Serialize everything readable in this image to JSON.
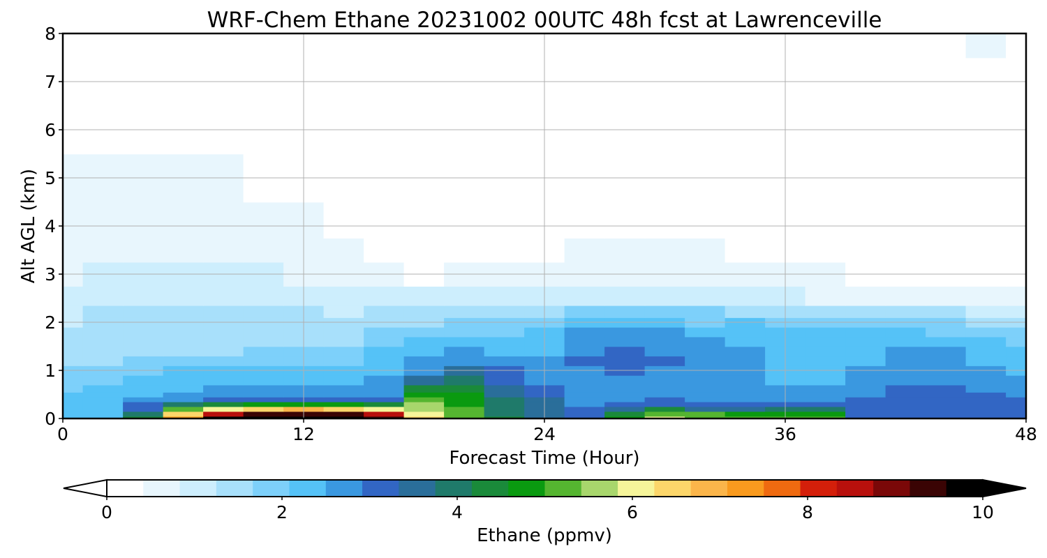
{
  "chart_data": {
    "type": "heatmap",
    "title": "WRF-Chem Ethane  20231002 00UTC 48h fcst at Lawrenceville",
    "xlabel": "Forecast Time (Hour)",
    "ylabel": "Alt AGL (km)",
    "xlim": [
      0,
      48
    ],
    "ylim": [
      0,
      8
    ],
    "xticks": [
      0,
      12,
      24,
      36,
      48
    ],
    "yticks": [
      0,
      1,
      2,
      3,
      4,
      5,
      6,
      7,
      8
    ],
    "grid": true,
    "colorbar": {
      "label": "Ethane  (ppmv)",
      "range": [
        0,
        10
      ],
      "ticks": [
        0,
        2,
        4,
        6,
        8,
        10
      ],
      "extend": "both",
      "colors": [
        "#ffffff",
        "#e8f6fd",
        "#cdeefd",
        "#a8e0fb",
        "#7dd0fa",
        "#55c2f7",
        "#3a98e0",
        "#3266c4",
        "#2a6e9a",
        "#1f7a6a",
        "#1a8a3a",
        "#0a9a10",
        "#55b530",
        "#a8d66c",
        "#f6f59a",
        "#fcd66a",
        "#fbb54a",
        "#f99a1e",
        "#ef6a10",
        "#d41f0a",
        "#b8100c",
        "#7a0808",
        "#3a0404",
        "#000000"
      ]
    },
    "time_hours": [
      0,
      2,
      4,
      6,
      8,
      10,
      12,
      14,
      16,
      18,
      20,
      22,
      24,
      26,
      28,
      30,
      32,
      34,
      36,
      38,
      40,
      42,
      44,
      46,
      48
    ],
    "alt_km": [
      0,
      0.1,
      0.2,
      0.3,
      0.4,
      0.5,
      0.6,
      0.8,
      1.0,
      1.2,
      1.4,
      1.6,
      1.8,
      2.0,
      2.2,
      2.5,
      3.0,
      3.5,
      4.0,
      5.0,
      6.0,
      7.0,
      8.0
    ],
    "values_ppmv": [
      [
        2.2,
        2.4,
        4.5,
        7.2,
        9.6,
        9.9,
        9.9,
        9.8,
        9.5,
        6.5,
        5.2,
        4.2,
        3.7,
        3.2,
        4.6,
        6.2,
        5.4,
        5.3,
        5.1,
        5.2,
        3.2,
        3.1,
        3.1,
        3.2,
        3.2
      ],
      [
        2.2,
        2.4,
        4.0,
        6.6,
        8.7,
        9.3,
        9.3,
        9.2,
        8.6,
        6.0,
        5.1,
        4.0,
        3.6,
        3.1,
        4.2,
        5.4,
        5.0,
        4.9,
        4.9,
        4.9,
        3.1,
        3.1,
        3.1,
        3.2,
        3.2
      ],
      [
        2.2,
        2.3,
        3.3,
        5.2,
        6.2,
        6.6,
        6.7,
        6.6,
        6.0,
        5.7,
        5.0,
        4.0,
        3.6,
        3.0,
        3.4,
        4.2,
        3.6,
        3.6,
        4.0,
        4.0,
        3.1,
        3.1,
        3.1,
        3.2,
        3.2
      ],
      [
        2.2,
        2.3,
        3.0,
        4.0,
        4.4,
        4.6,
        4.7,
        4.6,
        4.3,
        5.5,
        4.9,
        3.9,
        3.5,
        2.9,
        3.1,
        3.3,
        3.2,
        3.0,
        3.0,
        3.0,
        3.1,
        3.1,
        3.1,
        3.2,
        3.1
      ],
      [
        2.1,
        2.2,
        2.6,
        2.9,
        3.0,
        3.1,
        3.2,
        3.1,
        3.0,
        5.1,
        4.8,
        3.8,
        3.4,
        2.9,
        2.9,
        3.0,
        2.9,
        2.8,
        2.8,
        2.8,
        3.0,
        3.1,
        3.1,
        3.1,
        3.0
      ],
      [
        2.1,
        2.2,
        2.4,
        2.6,
        2.7,
        2.7,
        2.8,
        2.7,
        2.7,
        4.7,
        4.6,
        3.7,
        3.3,
        2.8,
        2.8,
        2.8,
        2.7,
        2.7,
        2.6,
        2.6,
        2.9,
        3.0,
        3.0,
        3.0,
        2.9
      ],
      [
        2.0,
        2.1,
        2.3,
        2.4,
        2.5,
        2.5,
        2.6,
        2.5,
        2.6,
        4.3,
        4.4,
        3.6,
        3.1,
        2.8,
        2.8,
        2.7,
        2.6,
        2.6,
        2.5,
        2.5,
        2.8,
        3.0,
        3.0,
        2.9,
        2.8
      ],
      [
        1.9,
        2.0,
        2.2,
        2.3,
        2.3,
        2.3,
        2.4,
        2.4,
        2.5,
        3.5,
        3.9,
        3.3,
        2.8,
        2.8,
        2.9,
        2.8,
        2.6,
        2.5,
        2.4,
        2.4,
        2.6,
        2.9,
        2.9,
        2.7,
        2.6
      ],
      [
        1.8,
        1.9,
        2.0,
        2.1,
        2.1,
        2.1,
        2.2,
        2.2,
        2.4,
        2.9,
        3.4,
        3.0,
        2.6,
        2.9,
        3.0,
        2.9,
        2.6,
        2.5,
        2.4,
        2.4,
        2.5,
        2.7,
        2.7,
        2.5,
        2.4
      ],
      [
        1.6,
        1.6,
        1.7,
        1.8,
        1.8,
        1.8,
        1.9,
        2.0,
        2.3,
        2.6,
        2.8,
        2.7,
        2.5,
        3.0,
        3.1,
        3.0,
        2.6,
        2.5,
        2.4,
        2.4,
        2.4,
        2.6,
        2.6,
        2.4,
        2.3
      ],
      [
        1.5,
        1.5,
        1.6,
        1.6,
        1.6,
        1.7,
        1.7,
        1.8,
        2.1,
        2.4,
        2.5,
        2.4,
        2.4,
        2.9,
        3.0,
        2.9,
        2.5,
        2.5,
        2.4,
        2.4,
        2.4,
        2.5,
        2.5,
        2.3,
        2.2
      ],
      [
        1.4,
        1.5,
        1.5,
        1.6,
        1.6,
        1.6,
        1.6,
        1.6,
        1.9,
        2.1,
        2.2,
        2.2,
        2.3,
        2.8,
        2.9,
        2.8,
        2.5,
        2.4,
        2.3,
        2.3,
        2.3,
        2.3,
        2.3,
        2.1,
        2.0
      ],
      [
        1.3,
        1.5,
        1.6,
        1.6,
        1.6,
        1.6,
        1.6,
        1.5,
        1.7,
        1.9,
        2.0,
        2.0,
        2.2,
        2.6,
        2.7,
        2.5,
        2.3,
        2.3,
        2.2,
        2.2,
        2.1,
        2.1,
        2.0,
        1.9,
        1.8
      ],
      [
        1.2,
        1.4,
        1.5,
        1.5,
        1.6,
        1.5,
        1.5,
        1.4,
        1.5,
        1.6,
        1.7,
        1.8,
        1.9,
        2.2,
        2.3,
        2.1,
        2.0,
        2.1,
        2.0,
        1.9,
        1.8,
        1.8,
        1.7,
        1.6,
        1.5
      ],
      [
        1.1,
        1.3,
        1.4,
        1.4,
        1.4,
        1.4,
        1.3,
        1.2,
        1.3,
        1.4,
        1.4,
        1.5,
        1.6,
        1.8,
        1.8,
        1.7,
        1.7,
        1.6,
        1.5,
        1.4,
        1.3,
        1.3,
        1.3,
        1.2,
        1.2
      ],
      [
        1.0,
        1.1,
        1.2,
        1.2,
        1.2,
        1.2,
        1.1,
        1.0,
        0.9,
        0.9,
        0.9,
        1.0,
        1.0,
        1.0,
        1.0,
        1.0,
        1.0,
        0.9,
        0.9,
        0.8,
        0.8,
        0.8,
        0.8,
        0.7,
        0.7
      ],
      [
        0.8,
        0.9,
        0.9,
        0.9,
        0.9,
        0.9,
        0.8,
        0.7,
        0.5,
        0.4,
        0.5,
        0.5,
        0.5,
        0.6,
        0.6,
        0.6,
        0.5,
        0.5,
        0.5,
        0.5,
        0.4,
        0.4,
        0.4,
        0.4,
        0.3
      ],
      [
        0.7,
        0.7,
        0.7,
        0.7,
        0.6,
        0.6,
        0.6,
        0.5,
        0.4,
        0.3,
        0.3,
        0.4,
        0.4,
        0.5,
        0.5,
        0.5,
        0.5,
        0.4,
        0.4,
        0.4,
        0.4,
        0.3,
        0.3,
        0.3,
        0.3
      ],
      [
        0.6,
        0.6,
        0.6,
        0.6,
        0.5,
        0.5,
        0.5,
        0.4,
        0.4,
        0.3,
        0.3,
        0.3,
        0.4,
        0.4,
        0.4,
        0.4,
        0.4,
        0.4,
        0.3,
        0.3,
        0.3,
        0.3,
        0.2,
        0.2,
        0.2
      ],
      [
        0.5,
        0.5,
        0.5,
        0.5,
        0.5,
        0.4,
        0.4,
        0.4,
        0.4,
        0.4,
        0.4,
        0.3,
        0.4,
        0.4,
        0.4,
        0.4,
        0.4,
        0.3,
        0.3,
        0.3,
        0.3,
        0.3,
        0.2,
        0.2,
        0.3
      ],
      [
        0.4,
        0.4,
        0.4,
        0.4,
        0.4,
        0.4,
        0.4,
        0.4,
        0.4,
        0.4,
        0.4,
        0.3,
        0.3,
        0.3,
        0.3,
        0.3,
        0.3,
        0.3,
        0.4,
        0.4,
        0.4,
        0.4,
        0.4,
        0.4,
        0.4
      ],
      [
        0.3,
        0.3,
        0.3,
        0.3,
        0.3,
        0.3,
        0.3,
        0.3,
        0.3,
        0.3,
        0.3,
        0.3,
        0.3,
        0.3,
        0.3,
        0.3,
        0.3,
        0.3,
        0.4,
        0.4,
        0.4,
        0.4,
        0.4,
        0.4,
        0.4
      ],
      [
        0.3,
        0.3,
        0.3,
        0.3,
        0.3,
        0.3,
        0.3,
        0.2,
        0.2,
        0.2,
        0.2,
        0.3,
        0.3,
        0.3,
        0.3,
        0.3,
        0.3,
        0.3,
        0.3,
        0.4,
        0.4,
        0.4,
        0.4,
        0.5,
        0.4
      ]
    ]
  }
}
